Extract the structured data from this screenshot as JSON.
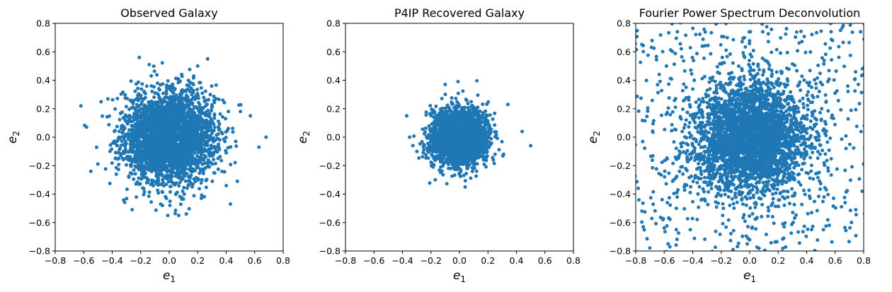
{
  "chart_data": [
    {
      "type": "scatter",
      "title": "Observed Galaxy",
      "xlabel": "e1",
      "ylabel": "e2",
      "xlim": [
        -0.8,
        0.8
      ],
      "ylim": [
        -0.8,
        0.8
      ],
      "xticks": [
        "−0.8",
        "−0.6",
        "−0.4",
        "−0.2",
        "0.0",
        "0.2",
        "0.4",
        "0.6",
        "0.8"
      ],
      "yticks": [
        "−0.8",
        "−0.6",
        "−0.4",
        "−0.2",
        "0.0",
        "0.2",
        "0.4",
        "0.6",
        "0.8"
      ],
      "grid": false,
      "color": "#1f77b4",
      "distribution": {
        "center": [
          0.0,
          0.0
        ],
        "std": 0.16,
        "approx_count": 3000
      },
      "outliers": [
        [
          -0.62,
          0.22
        ],
        [
          -0.55,
          -0.24
        ],
        [
          -0.58,
          0.07
        ],
        [
          0.68,
          0.0
        ],
        [
          0.63,
          -0.07
        ],
        [
          0.57,
          0.15
        ],
        [
          0.5,
          0.18
        ],
        [
          0.43,
          -0.47
        ],
        [
          0.27,
          0.55
        ],
        [
          -0.21,
          0.56
        ],
        [
          -0.14,
          0.51
        ],
        [
          0.2,
          0.5
        ],
        [
          -0.26,
          -0.51
        ],
        [
          -0.01,
          -0.55
        ],
        [
          0.12,
          -0.54
        ]
      ]
    },
    {
      "type": "scatter",
      "title": "P4IP Recovered Galaxy",
      "xlabel": "e1",
      "ylabel": "e2",
      "xlim": [
        -0.8,
        0.8
      ],
      "ylim": [
        -0.8,
        0.8
      ],
      "xticks": [
        "−0.8",
        "−0.6",
        "−0.4",
        "−0.2",
        "0.0",
        "0.2",
        "0.4",
        "0.6",
        "0.8"
      ],
      "yticks": [
        "−0.8",
        "−0.6",
        "−0.4",
        "−0.2",
        "0.0",
        "0.2",
        "0.4",
        "0.6",
        "0.8"
      ],
      "grid": false,
      "color": "#1f77b4",
      "distribution": {
        "center": [
          0.0,
          0.0
        ],
        "std": 0.095,
        "approx_count": 2500
      },
      "outliers": [
        [
          0.5,
          -0.06
        ],
        [
          0.44,
          0.04
        ],
        [
          -0.37,
          0.15
        ],
        [
          -0.35,
          0.0
        ],
        [
          0.34,
          0.23
        ],
        [
          -0.01,
          0.39
        ],
        [
          0.04,
          -0.35
        ],
        [
          -0.17,
          -0.3
        ],
        [
          -0.1,
          0.37
        ],
        [
          0.31,
          -0.12
        ]
      ]
    },
    {
      "type": "scatter",
      "title": "Fourier Power Spectrum Deconvolution",
      "xlabel": "e1",
      "ylabel": "e2",
      "xlim": [
        -0.8,
        0.8
      ],
      "ylim": [
        -0.8,
        0.8
      ],
      "xticks": [
        "−0.8",
        "−0.6",
        "−0.4",
        "−0.2",
        "0.0",
        "0.2",
        "0.4",
        "0.6",
        "0.8"
      ],
      "yticks": [
        "−0.8",
        "−0.6",
        "−0.4",
        "−0.2",
        "0.0",
        "0.2",
        "0.4",
        "0.6",
        "0.8"
      ],
      "grid": false,
      "color": "#1f77b4",
      "distribution": {
        "center": [
          0.0,
          0.0
        ],
        "std": 0.2,
        "approx_count": 3000,
        "halo_count": 650,
        "halo_range": [
          -0.85,
          0.85
        ]
      },
      "outliers": []
    }
  ]
}
